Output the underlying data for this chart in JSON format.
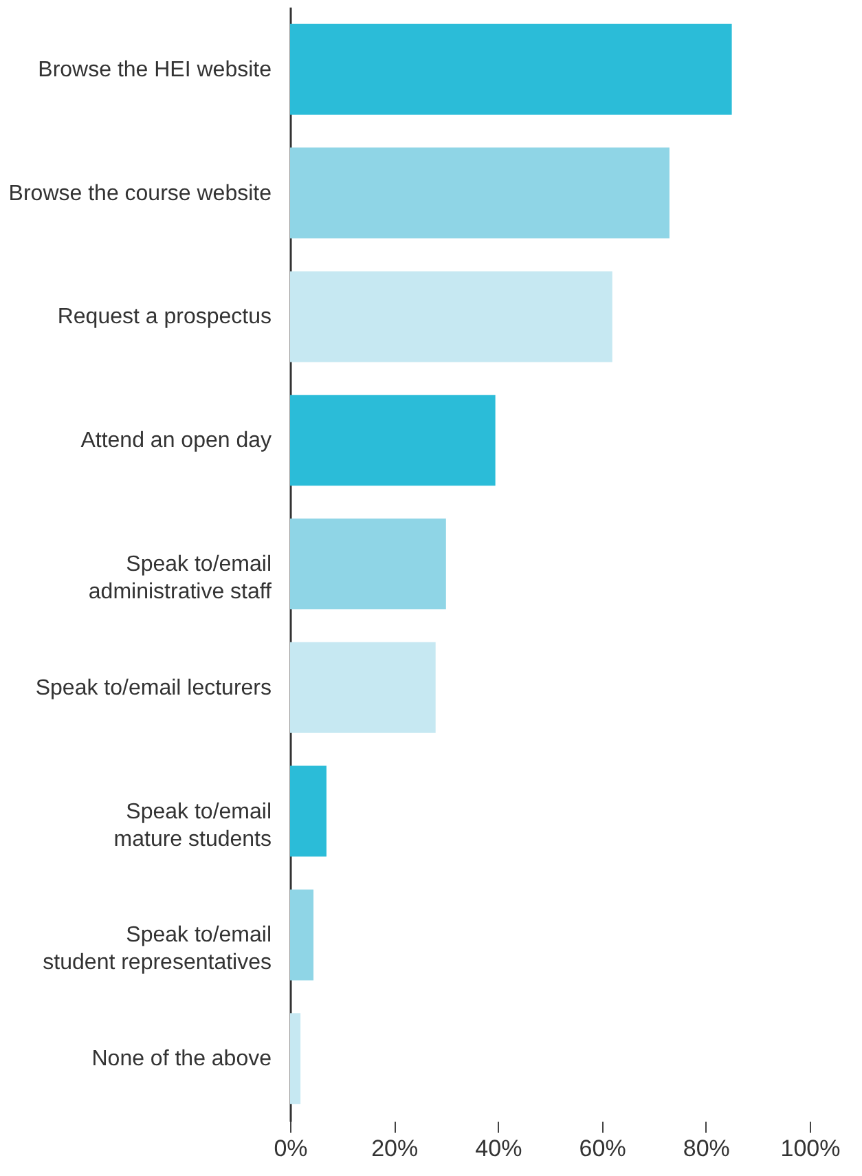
{
  "chart_data": {
    "type": "bar",
    "orientation": "horizontal",
    "categories": [
      "Browse the HEI website",
      "Browse the course website",
      "Request a prospectus",
      "Attend an open day",
      "Speak to/email\nadministrative staff",
      "Speak to/email lecturers",
      "Speak to/email\nmature students",
      "Speak to/email\nstudent representatives",
      "None of the above"
    ],
    "values": [
      85,
      73,
      62,
      39.5,
      30,
      28,
      7,
      4.5,
      2
    ],
    "colors": [
      "#2bbcd8",
      "#8fd5e6",
      "#c6e8f2",
      "#2bbcd8",
      "#8fd5e6",
      "#c6e8f2",
      "#2bbcd8",
      "#8fd5e6",
      "#c6e8f2"
    ],
    "xlim": [
      0,
      100
    ],
    "xticks": [
      {
        "value": 0,
        "label": "0%"
      },
      {
        "value": 20,
        "label": "20%"
      },
      {
        "value": 40,
        "label": "40%"
      },
      {
        "value": 60,
        "label": "60%"
      },
      {
        "value": 80,
        "label": "80%"
      },
      {
        "value": 100,
        "label": "100%"
      }
    ],
    "grid": false
  }
}
